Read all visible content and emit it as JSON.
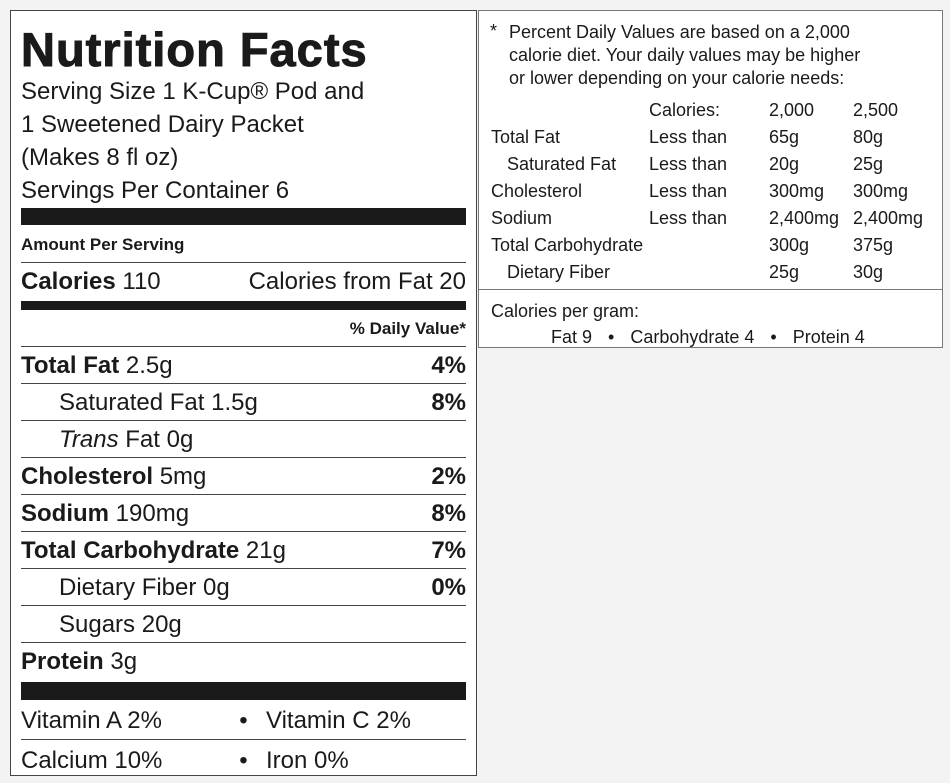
{
  "title": "Nutrition Facts",
  "serving": [
    "Serving Size 1 K-Cup® Pod and",
    "1 Sweetened Dairy Packet",
    "(Makes 8 fl oz)",
    "Servings Per Container 6"
  ],
  "amount_per_serving": "Amount Per Serving",
  "calories": {
    "label": "Calories",
    "value": "110",
    "from_fat": "Calories from Fat 20"
  },
  "daily_value_header": "% Daily Value*",
  "nutrients": [
    {
      "name": "Total Fat",
      "amount": "2.5g",
      "dv": "4%",
      "sub": [
        {
          "name": "Saturated Fat",
          "amount": "1.5g",
          "dv": "8%"
        },
        {
          "prefix": "Trans",
          "name": "Fat",
          "amount": "0g"
        }
      ]
    },
    {
      "name": "Cholesterol",
      "amount": "5mg",
      "dv": "2%"
    },
    {
      "name": "Sodium",
      "amount": "190mg",
      "dv": "8%"
    },
    {
      "name": "Total Carbohydrate",
      "amount": "21g",
      "dv": "7%",
      "sub": [
        {
          "name": "Dietary Fiber",
          "amount": "0g",
          "dv": "0%"
        },
        {
          "name": "Sugars",
          "amount": "20g"
        }
      ]
    },
    {
      "name": "Protein",
      "amount": "3g"
    }
  ],
  "vitamins": [
    [
      "Vitamin A 2%",
      "Vitamin C 2%"
    ],
    [
      "Calcium 10%",
      "Iron 0%"
    ]
  ],
  "footnote": {
    "marker": "*",
    "text_lines": [
      "Percent Daily Values are based on a 2,000",
      "calorie diet. Your daily values may be higher",
      "or lower depending on your calorie needs:"
    ],
    "header": [
      "Calories:",
      "2,000",
      "2,500"
    ],
    "rows": [
      {
        "name": "Total Fat",
        "limit": "Less than",
        "values": [
          "65g",
          "80g"
        ],
        "sub": [
          {
            "name": "Saturated Fat",
            "limit": "Less than",
            "values": [
              "20g",
              "25g"
            ]
          }
        ]
      },
      {
        "name": "Cholesterol",
        "limit": "Less than",
        "values": [
          "300mg",
          "300mg"
        ]
      },
      {
        "name": "Sodium",
        "limit": "Less than",
        "values": [
          "2,400mg",
          "2,400mg"
        ]
      },
      {
        "name": "Total Carbohydrate",
        "values": [
          "300g",
          "375g"
        ],
        "sub": [
          {
            "name": "Dietary Fiber",
            "values": [
              "25g",
              "30g"
            ]
          }
        ]
      }
    ],
    "per_gram": {
      "label": "Calories per gram:",
      "items": [
        "Fat 9",
        "Carbohydrate 4",
        "Protein 4"
      ]
    }
  }
}
